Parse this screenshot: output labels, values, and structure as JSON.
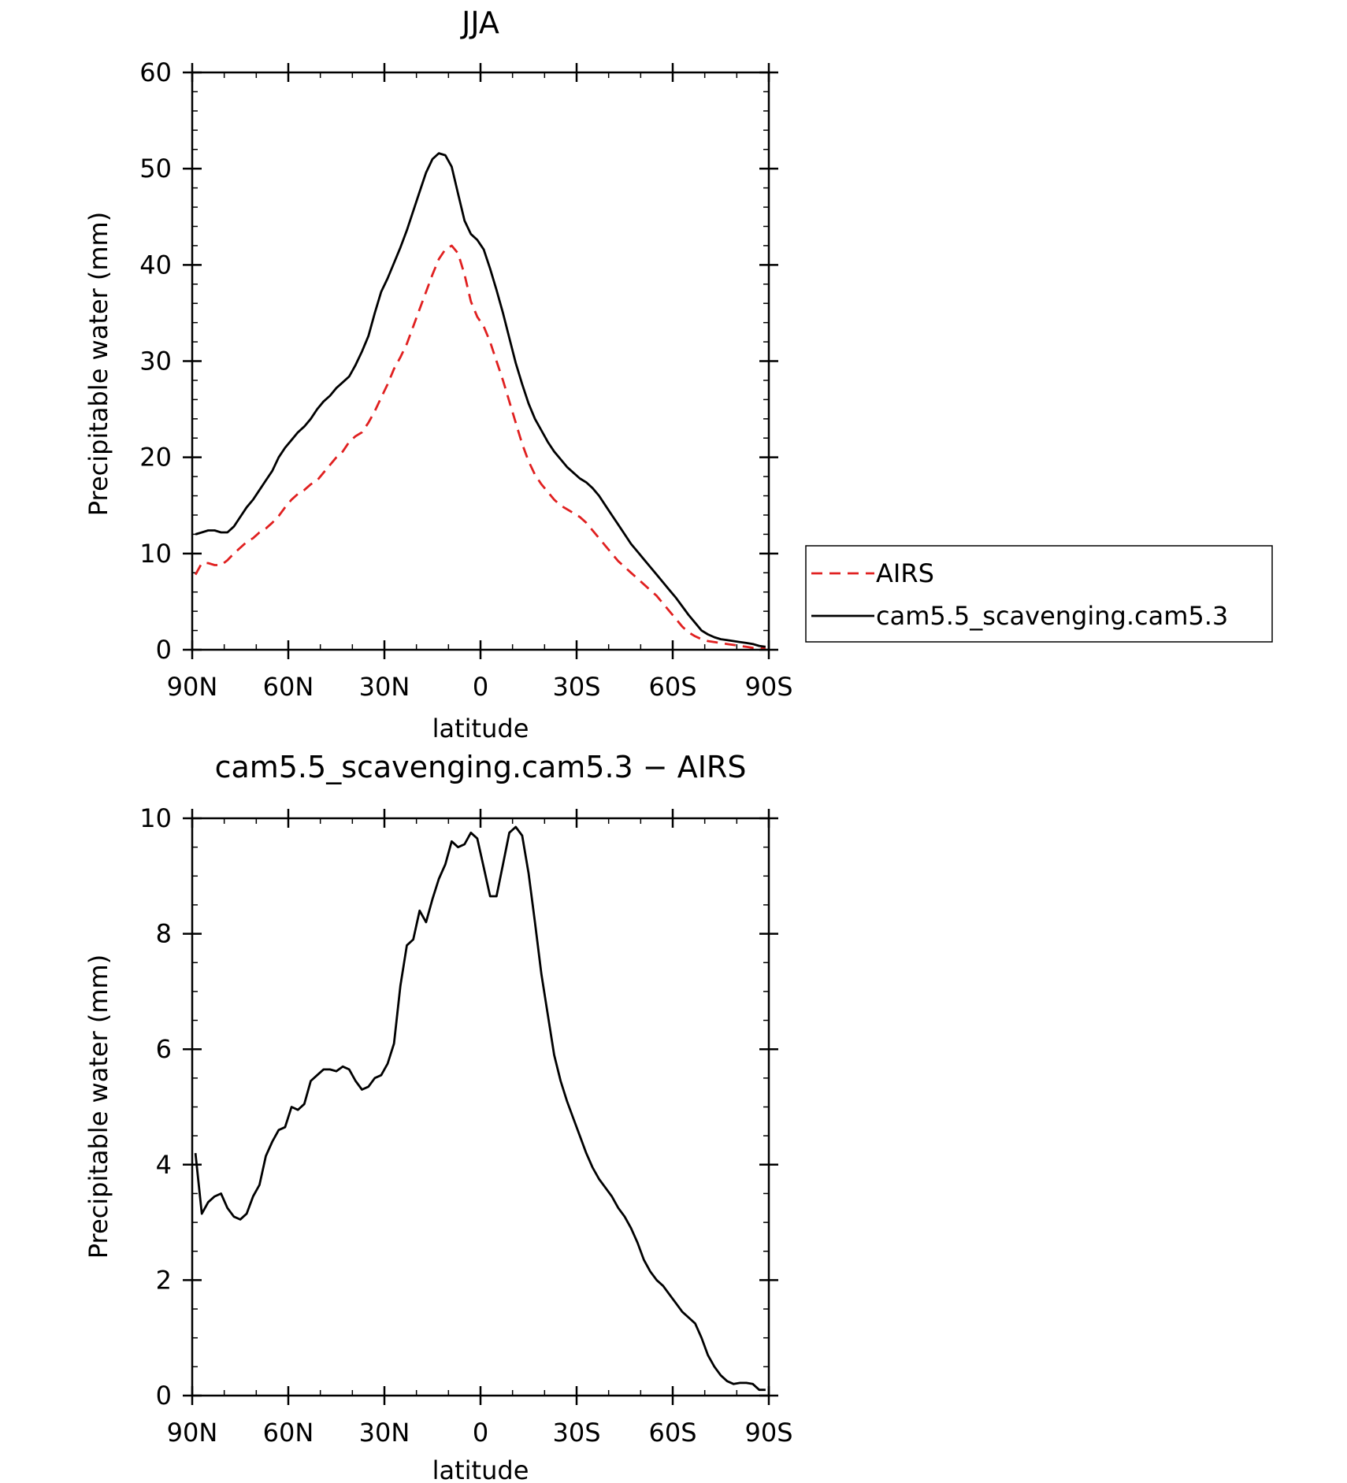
{
  "chart_data": [
    {
      "type": "line",
      "title": "JJA",
      "xlabel": "latitude",
      "ylabel": "Precipitable water (mm)",
      "ylim": [
        0,
        60
      ],
      "yticks": [
        "0",
        "10",
        "20",
        "30",
        "40",
        "50",
        "60"
      ],
      "xlim": [
        90,
        -90
      ],
      "xticks": [
        {
          "v": 90,
          "label": "90N"
        },
        {
          "v": 60,
          "label": "60N"
        },
        {
          "v": 30,
          "label": "30N"
        },
        {
          "v": 0,
          "label": "0"
        },
        {
          "v": -30,
          "label": "30S"
        },
        {
          "v": -60,
          "label": "60S"
        },
        {
          "v": -90,
          "label": "90S"
        }
      ],
      "legend_position": "right",
      "series": [
        {
          "name": "AIRS",
          "color": "#e02020",
          "style": "dashed",
          "x": [
            89,
            87,
            85,
            83,
            81,
            79,
            77,
            75,
            73,
            71,
            69,
            67,
            65,
            63,
            61,
            59,
            57,
            55,
            53,
            51,
            49,
            47,
            45,
            43,
            41,
            39,
            37,
            35,
            33,
            31,
            29,
            27,
            25,
            23,
            21,
            19,
            17,
            15,
            13,
            11,
            9,
            7,
            5,
            3,
            1,
            -1,
            -3,
            -5,
            -7,
            -9,
            -11,
            -13,
            -15,
            -17,
            -19,
            -21,
            -23,
            -25,
            -27,
            -29,
            -31,
            -33,
            -35,
            -37,
            -39,
            -41,
            -43,
            -45,
            -47,
            -49,
            -51,
            -53,
            -55,
            -57,
            -59,
            -61,
            -63,
            -65,
            -67,
            -69,
            -71,
            -73,
            -75,
            -77,
            -79,
            -81,
            -83,
            -85,
            -87,
            -89
          ],
          "values": [
            7.8,
            9.0,
            9.0,
            8.8,
            8.8,
            9.3,
            10.0,
            10.6,
            11.2,
            11.6,
            12.2,
            12.6,
            13.2,
            13.9,
            14.8,
            15.6,
            16.2,
            16.6,
            17.2,
            17.6,
            18.4,
            19.2,
            20.0,
            20.6,
            21.6,
            22.2,
            22.6,
            23.6,
            24.8,
            26.2,
            27.6,
            29.2,
            30.4,
            31.8,
            33.6,
            35.4,
            37.2,
            39.0,
            40.6,
            41.6,
            42.0,
            41.2,
            39.0,
            36.2,
            34.6,
            33.6,
            32.0,
            30.0,
            28.0,
            25.8,
            23.6,
            21.4,
            19.6,
            18.2,
            17.2,
            16.4,
            15.6,
            15.0,
            14.6,
            14.2,
            13.8,
            13.2,
            12.4,
            11.6,
            10.8,
            10.0,
            9.2,
            8.6,
            8.0,
            7.4,
            6.8,
            6.2,
            5.6,
            4.8,
            4.0,
            3.2,
            2.4,
            1.8,
            1.4,
            1.1,
            0.9,
            0.8,
            0.7,
            0.6,
            0.5,
            0.4,
            0.3,
            0.2,
            0.2,
            0.1
          ]
        },
        {
          "name": "cam5.5_scavenging.cam5.3",
          "color": "#000000",
          "style": "solid",
          "x": [
            89,
            87,
            85,
            83,
            81,
            79,
            77,
            75,
            73,
            71,
            69,
            67,
            65,
            63,
            61,
            59,
            57,
            55,
            53,
            51,
            49,
            47,
            45,
            43,
            41,
            39,
            37,
            35,
            33,
            31,
            29,
            27,
            25,
            23,
            21,
            19,
            17,
            15,
            13,
            11,
            9,
            7,
            5,
            3,
            1,
            -1,
            -3,
            -5,
            -7,
            -9,
            -11,
            -13,
            -15,
            -17,
            -19,
            -21,
            -23,
            -25,
            -27,
            -29,
            -31,
            -33,
            -35,
            -37,
            -39,
            -41,
            -43,
            -45,
            -47,
            -49,
            -51,
            -53,
            -55,
            -57,
            -59,
            -61,
            -63,
            -65,
            -67,
            -69,
            -71,
            -73,
            -75,
            -77,
            -79,
            -81,
            -83,
            -85,
            -87,
            -89
          ],
          "values": [
            12.0,
            12.2,
            12.4,
            12.4,
            12.2,
            12.2,
            12.8,
            13.8,
            14.8,
            15.6,
            16.6,
            17.6,
            18.6,
            20.0,
            21.0,
            21.8,
            22.6,
            23.2,
            24.0,
            25.0,
            25.8,
            26.4,
            27.2,
            27.8,
            28.4,
            29.6,
            31.0,
            32.6,
            35.0,
            37.2,
            38.6,
            40.2,
            41.8,
            43.6,
            45.6,
            47.6,
            49.6,
            51.0,
            51.6,
            51.4,
            50.2,
            47.4,
            44.6,
            43.2,
            42.6,
            41.6,
            39.6,
            37.4,
            35.0,
            32.4,
            29.8,
            27.6,
            25.6,
            24.0,
            22.8,
            21.6,
            20.6,
            19.8,
            19.0,
            18.4,
            17.8,
            17.4,
            16.8,
            16.0,
            15.0,
            14.0,
            13.0,
            12.0,
            11.0,
            10.2,
            9.4,
            8.6,
            7.8,
            7.0,
            6.2,
            5.4,
            4.5,
            3.6,
            2.8,
            2.0,
            1.6,
            1.3,
            1.1,
            1.0,
            0.9,
            0.8,
            0.7,
            0.6,
            0.4,
            0.3
          ]
        }
      ]
    },
    {
      "type": "line",
      "title": "cam5.5_scavenging.cam5.3 − AIRS",
      "xlabel": "latitude",
      "ylabel": "Precipitable water (mm)",
      "ylim": [
        0,
        10
      ],
      "yticks": [
        "0",
        "2",
        "4",
        "6",
        "8",
        "10"
      ],
      "xlim": [
        90,
        -90
      ],
      "xticks": [
        {
          "v": 90,
          "label": "90N"
        },
        {
          "v": 60,
          "label": "60N"
        },
        {
          "v": 30,
          "label": "30N"
        },
        {
          "v": 0,
          "label": "0"
        },
        {
          "v": -30,
          "label": "30S"
        },
        {
          "v": -60,
          "label": "60S"
        },
        {
          "v": -90,
          "label": "90S"
        }
      ],
      "series": [
        {
          "color": "#000000",
          "style": "solid",
          "x": [
            89,
            87,
            85,
            83,
            81,
            79,
            77,
            75,
            73,
            71,
            69,
            67,
            65,
            63,
            61,
            59,
            57,
            55,
            53,
            51,
            49,
            47,
            45,
            43,
            41,
            39,
            37,
            35,
            33,
            31,
            29,
            27,
            25,
            23,
            21,
            19,
            17,
            15,
            13,
            11,
            9,
            7,
            5,
            3,
            1,
            -1,
            -3,
            -5,
            -7,
            -9,
            -11,
            -13,
            -15,
            -17,
            -19,
            -21,
            -23,
            -25,
            -27,
            -29,
            -31,
            -33,
            -35,
            -37,
            -39,
            -41,
            -43,
            -45,
            -47,
            -49,
            -51,
            -53,
            -55,
            -57,
            -59,
            -61,
            -63,
            -65,
            -67,
            -69,
            -71,
            -73,
            -75,
            -77,
            -79,
            -81,
            -83,
            -85,
            -87,
            -89
          ],
          "values": [
            4.2,
            3.15,
            3.35,
            3.45,
            3.5,
            3.25,
            3.1,
            3.05,
            3.15,
            3.45,
            3.65,
            4.15,
            4.4,
            4.6,
            4.65,
            5.0,
            4.95,
            5.05,
            5.45,
            5.55,
            5.65,
            5.65,
            5.62,
            5.7,
            5.65,
            5.45,
            5.3,
            5.35,
            5.5,
            5.55,
            5.75,
            6.1,
            7.1,
            7.8,
            7.9,
            8.4,
            8.2,
            8.6,
            8.95,
            9.2,
            9.6,
            9.5,
            9.55,
            9.75,
            9.65,
            9.15,
            8.65,
            8.65,
            9.2,
            9.75,
            9.85,
            9.7,
            9.05,
            8.2,
            7.3,
            6.6,
            5.9,
            5.45,
            5.1,
            4.8,
            4.5,
            4.2,
            3.95,
            3.75,
            3.6,
            3.45,
            3.25,
            3.1,
            2.9,
            2.65,
            2.35,
            2.15,
            2.0,
            1.9,
            1.75,
            1.6,
            1.45,
            1.35,
            1.25,
            1.0,
            0.7,
            0.5,
            0.35,
            0.25,
            0.2,
            0.22,
            0.22,
            0.2,
            0.1,
            0.1
          ]
        }
      ]
    }
  ]
}
